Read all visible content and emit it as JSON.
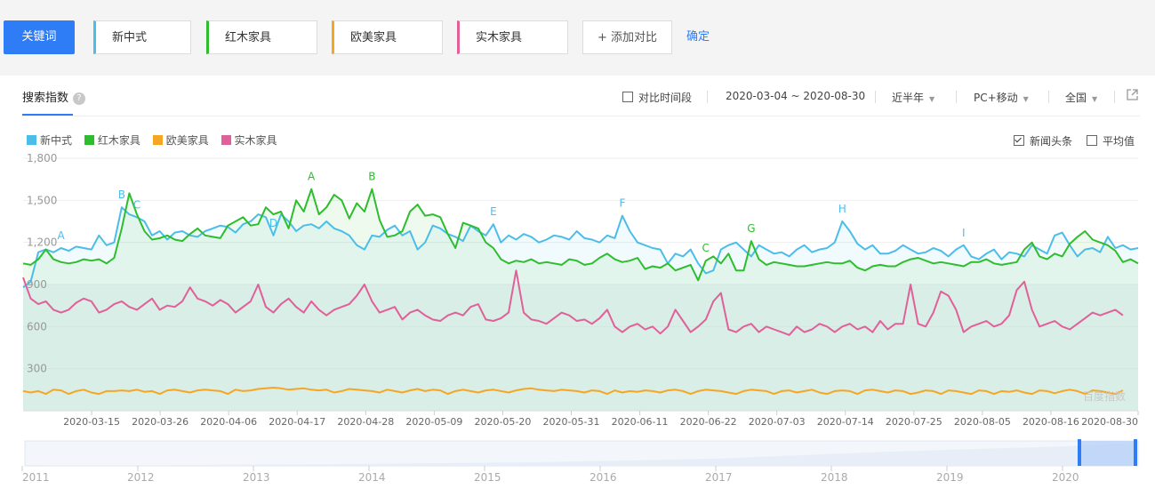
{
  "keywords": {
    "primary_label": "关键词",
    "items": [
      {
        "label": "新中式",
        "color": "#4bbde8"
      },
      {
        "label": "红木家具",
        "color": "#2dbd2d"
      },
      {
        "label": "欧美家具",
        "color": "#f5a623"
      },
      {
        "label": "实木家具",
        "color": "#e0609a"
      }
    ],
    "add_label": "+ 添加对比",
    "confirm_label": "确定"
  },
  "panel": {
    "tab_label": "搜索指数",
    "help_icon": "?",
    "compare_period_label": "对比时间段",
    "date_range": "2020-03-04 ~ 2020-08-30",
    "period_select": "近半年",
    "device_select": "PC+移动",
    "region_select": "全国",
    "export_icon": "external-link-icon",
    "news_label": "新闻头条",
    "news_checked": true,
    "average_label": "平均值",
    "average_checked": false,
    "watermark": "百度指数"
  },
  "chart_data": {
    "type": "line",
    "ylim": [
      0,
      1800
    ],
    "yticks": [
      "300",
      "600",
      "900",
      "1,200",
      "1,500",
      "1,800"
    ],
    "xticks": [
      "2020-03-15",
      "2020-03-26",
      "2020-04-06",
      "2020-04-17",
      "2020-04-28",
      "2020-05-09",
      "2020-05-20",
      "2020-05-31",
      "2020-06-11",
      "2020-06-22",
      "2020-07-03",
      "2020-07-14",
      "2020-07-25",
      "2020-08-05",
      "2020-08-16",
      "2020-08-30"
    ],
    "x_start": "2020-03-04",
    "x_end": "2020-08-30",
    "grid": true,
    "series": [
      {
        "name": "新中式",
        "color": "#4bbde8",
        "area": true,
        "values": [
          880,
          920,
          1130,
          1150,
          1130,
          1160,
          1140,
          1170,
          1160,
          1150,
          1250,
          1180,
          1200,
          1450,
          1400,
          1380,
          1350,
          1250,
          1280,
          1220,
          1270,
          1280,
          1250,
          1240,
          1280,
          1300,
          1320,
          1310,
          1270,
          1330,
          1350,
          1400,
          1380,
          1250,
          1400,
          1350,
          1280,
          1320,
          1330,
          1300,
          1350,
          1300,
          1280,
          1250,
          1180,
          1150,
          1250,
          1240,
          1290,
          1320,
          1250,
          1280,
          1150,
          1200,
          1320,
          1300,
          1260,
          1240,
          1210,
          1320,
          1280,
          1250,
          1330,
          1200,
          1250,
          1220,
          1260,
          1240,
          1200,
          1220,
          1250,
          1240,
          1220,
          1280,
          1230,
          1220,
          1200,
          1250,
          1230,
          1390,
          1280,
          1200,
          1180,
          1160,
          1150,
          1050,
          1120,
          1100,
          1150,
          1050,
          980,
          1000,
          1150,
          1180,
          1200,
          1150,
          1100,
          1180,
          1150,
          1120,
          1130,
          1100,
          1150,
          1180,
          1130,
          1150,
          1160,
          1200,
          1350,
          1280,
          1190,
          1150,
          1180,
          1120,
          1120,
          1140,
          1180,
          1150,
          1120,
          1130,
          1160,
          1140,
          1100,
          1150,
          1180,
          1100,
          1080,
          1120,
          1150,
          1080,
          1130,
          1120,
          1100,
          1180,
          1150,
          1120,
          1250,
          1270,
          1180,
          1100,
          1150,
          1160,
          1130,
          1240,
          1160,
          1180,
          1150,
          1160
        ]
      },
      {
        "name": "红木家具",
        "color": "#2dbd2d",
        "area": true,
        "values": [
          1050,
          1040,
          1080,
          1150,
          1080,
          1060,
          1050,
          1060,
          1080,
          1070,
          1080,
          1050,
          1090,
          1300,
          1550,
          1400,
          1280,
          1220,
          1230,
          1250,
          1220,
          1210,
          1260,
          1300,
          1250,
          1240,
          1230,
          1320,
          1350,
          1380,
          1320,
          1330,
          1450,
          1400,
          1420,
          1300,
          1500,
          1420,
          1580,
          1400,
          1450,
          1540,
          1500,
          1370,
          1480,
          1420,
          1580,
          1360,
          1240,
          1250,
          1280,
          1420,
          1470,
          1390,
          1400,
          1380,
          1260,
          1160,
          1340,
          1320,
          1300,
          1200,
          1160,
          1080,
          1050,
          1070,
          1060,
          1080,
          1050,
          1060,
          1050,
          1040,
          1080,
          1070,
          1040,
          1050,
          1090,
          1120,
          1080,
          1060,
          1070,
          1090,
          1010,
          1030,
          1020,
          1050,
          1000,
          1020,
          1040,
          930,
          1070,
          1100,
          1050,
          1120,
          1000,
          1000,
          1210,
          1080,
          1040,
          1060,
          1050,
          1040,
          1030,
          1030,
          1040,
          1050,
          1060,
          1050,
          1050,
          1070,
          1020,
          1000,
          1030,
          1040,
          1030,
          1030,
          1060,
          1080,
          1090,
          1070,
          1050,
          1060,
          1050,
          1040,
          1030,
          1060,
          1060,
          1080,
          1050,
          1040,
          1050,
          1060,
          1150,
          1200,
          1100,
          1080,
          1120,
          1100,
          1190,
          1240,
          1280,
          1220,
          1200,
          1180,
          1140,
          1060,
          1080,
          1050
        ]
      },
      {
        "name": "欧美家具",
        "color": "#f5a623",
        "area": false,
        "values": [
          140,
          130,
          140,
          120,
          150,
          145,
          120,
          140,
          150,
          130,
          120,
          140,
          140,
          145,
          140,
          150,
          135,
          140,
          120,
          145,
          150,
          140,
          130,
          145,
          150,
          145,
          140,
          120,
          150,
          140,
          145,
          155,
          160,
          165,
          160,
          150,
          155,
          160,
          150,
          145,
          150,
          130,
          140,
          155,
          150,
          145,
          140,
          130,
          150,
          140,
          130,
          145,
          155,
          140,
          150,
          145,
          120,
          140,
          150,
          140,
          130,
          145,
          150,
          140,
          130,
          145,
          155,
          160,
          150,
          145,
          140,
          150,
          145,
          140,
          130,
          145,
          140,
          120,
          145,
          130,
          140,
          135,
          145,
          140,
          130,
          145,
          150,
          140,
          120,
          140,
          150,
          145,
          140,
          130,
          120,
          140,
          150,
          145,
          140,
          120,
          140,
          145,
          130,
          140,
          150,
          130,
          120,
          140,
          145,
          140,
          120,
          145,
          150,
          140,
          130,
          145,
          140,
          120,
          130,
          145,
          140,
          120,
          145,
          140,
          130,
          120,
          145,
          140,
          120,
          140,
          135,
          145,
          130,
          120,
          145,
          140,
          125,
          140,
          150,
          140,
          120,
          145,
          140,
          130,
          120,
          145
        ]
      },
      {
        "name": "实木家具",
        "color": "#e0609a",
        "area": false,
        "values": [
          950,
          800,
          760,
          780,
          720,
          700,
          720,
          770,
          800,
          780,
          700,
          720,
          760,
          780,
          740,
          720,
          760,
          800,
          720,
          750,
          740,
          780,
          880,
          800,
          780,
          750,
          790,
          760,
          700,
          740,
          780,
          900,
          740,
          700,
          760,
          800,
          740,
          700,
          780,
          720,
          680,
          720,
          740,
          760,
          820,
          900,
          780,
          700,
          720,
          740,
          650,
          700,
          720,
          680,
          650,
          640,
          680,
          700,
          680,
          740,
          760,
          650,
          640,
          660,
          700,
          1000,
          700,
          650,
          640,
          620,
          660,
          700,
          680,
          640,
          650,
          620,
          660,
          720,
          600,
          560,
          600,
          620,
          580,
          600,
          550,
          600,
          720,
          640,
          560,
          600,
          650,
          780,
          840,
          580,
          560,
          600,
          620,
          560,
          600,
          580,
          560,
          540,
          600,
          560,
          580,
          620,
          600,
          560,
          600,
          620,
          580,
          600,
          560,
          640,
          580,
          620,
          620,
          900,
          620,
          600,
          700,
          850,
          820,
          720,
          560,
          600,
          620,
          640,
          600,
          620,
          680,
          860,
          920,
          720,
          600,
          620,
          640,
          600,
          580,
          620,
          660,
          700,
          680,
          700,
          720,
          680
        ]
      }
    ],
    "annotations": [
      {
        "letter": "A",
        "series": "新中式",
        "index": 5
      },
      {
        "letter": "B",
        "series": "新中式",
        "index": 13
      },
      {
        "letter": "C",
        "series": "新中式",
        "index": 15
      },
      {
        "letter": "D",
        "series": "新中式",
        "index": 33
      },
      {
        "letter": "A",
        "series": "红木家具",
        "index": 38
      },
      {
        "letter": "B",
        "series": "红木家具",
        "index": 46
      },
      {
        "letter": "E",
        "series": "新中式",
        "index": 62
      },
      {
        "letter": "F",
        "series": "新中式",
        "index": 79
      },
      {
        "letter": "C",
        "series": "红木家具",
        "index": 90
      },
      {
        "letter": "G",
        "series": "红木家具",
        "index": 96
      },
      {
        "letter": "H",
        "series": "新中式",
        "index": 108
      },
      {
        "letter": "I",
        "series": "新中式",
        "index": 124
      }
    ]
  },
  "timeline": {
    "years": [
      "2011",
      "2012",
      "2013",
      "2014",
      "2015",
      "2016",
      "2017",
      "2018",
      "2019",
      "2020"
    ],
    "handle_color": "#2e7cf6"
  }
}
